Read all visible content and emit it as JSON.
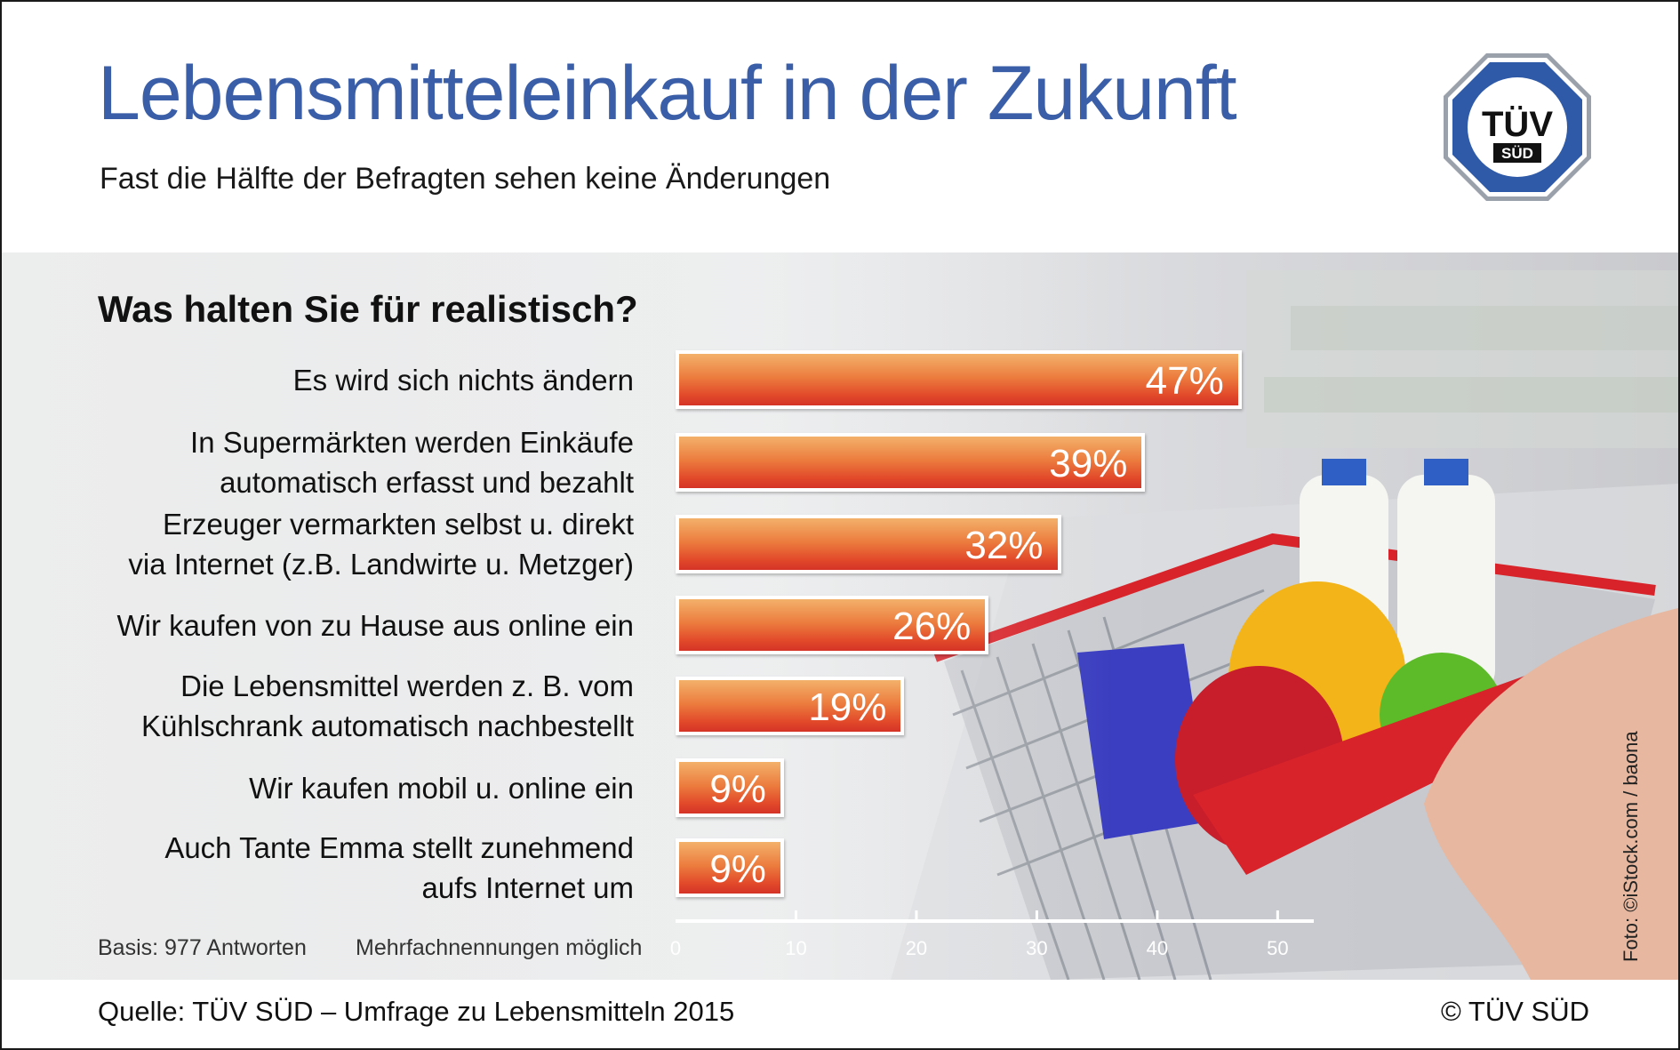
{
  "header": {
    "title": "Lebensmitteleinkauf in der Zukunft",
    "subtitle": "Fast die Hälfte der Befragten sehen keine Änderungen",
    "logo_text_top": "TÜV",
    "logo_text_bottom": "SÜD"
  },
  "chart_data": {
    "type": "bar",
    "orientation": "horizontal",
    "title": "Was halten Sie für realistisch?",
    "categories": [
      [
        "Es wird sich nichts ändern"
      ],
      [
        "In Supermärkten werden Einkäufe",
        "automatisch erfasst und bezahlt"
      ],
      [
        "Erzeuger vermarkten selbst u. direkt",
        "via Internet (z.B. Landwirte u. Metzger)"
      ],
      [
        "Wir kaufen von zu Hause aus online ein"
      ],
      [
        "Die Lebensmittel werden z. B. vom",
        "Kühlschrank automatisch nachbestellt"
      ],
      [
        "Wir kaufen mobil u. online ein"
      ],
      [
        "Auch Tante Emma stellt zunehmend",
        "aufs Internet um"
      ]
    ],
    "values": [
      47,
      39,
      32,
      26,
      19,
      9,
      9
    ],
    "value_labels": [
      "47%",
      "39%",
      "32%",
      "26%",
      "19%",
      "9%",
      "9%"
    ],
    "xlim": [
      0,
      53
    ],
    "ticks": [
      "0",
      "10",
      "20",
      "30",
      "40",
      "50"
    ],
    "tick_values": [
      0,
      10,
      20,
      30,
      40,
      50
    ],
    "colors": {
      "bar_top": "#f3b16a",
      "bar_bottom": "#d43326",
      "title": "#3a5ea8"
    }
  },
  "notes": {
    "basis": "Basis: 977 Antworten",
    "multiple": "Mehrfachnennungen möglich",
    "photo_credit": "Foto: ©iStock.com / baona"
  },
  "footer": {
    "source": "Quelle: TÜV SÜD – Umfrage zu Lebensmitteln 2015",
    "copyright": "© TÜV SÜD"
  }
}
